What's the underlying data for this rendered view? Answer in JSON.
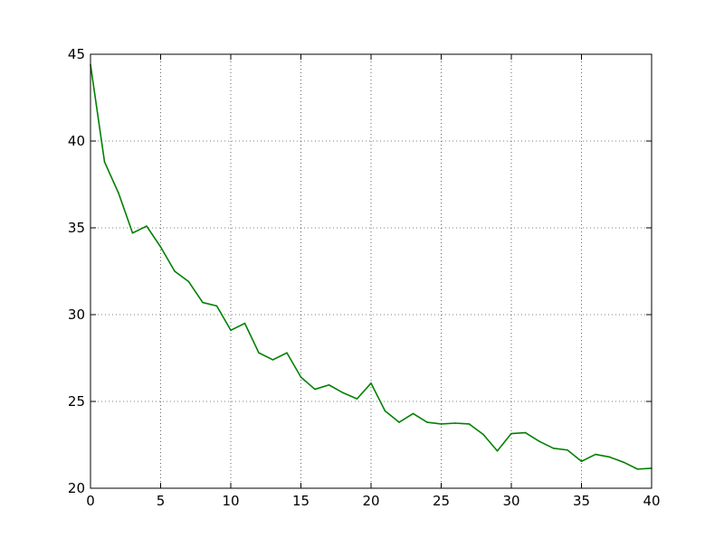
{
  "chart_data": {
    "type": "line",
    "title": "",
    "xlabel": "",
    "ylabel": "",
    "xlim": [
      0,
      40
    ],
    "ylim": [
      20,
      45
    ],
    "x_ticks": [
      0,
      5,
      10,
      15,
      20,
      25,
      30,
      35,
      40
    ],
    "y_ticks": [
      20,
      25,
      30,
      35,
      40,
      45
    ],
    "x_tick_labels": [
      "0",
      "5",
      "10",
      "15",
      "20",
      "25",
      "30",
      "35",
      "40"
    ],
    "y_tick_labels": [
      "20",
      "25",
      "30",
      "35",
      "40",
      "45"
    ],
    "grid": true,
    "grid_style": "dotted",
    "legend": "none",
    "series": [
      {
        "color": "#008000",
        "x": [
          0,
          1,
          2,
          3,
          4,
          5,
          6,
          7,
          8,
          9,
          10,
          11,
          12,
          13,
          14,
          15,
          16,
          17,
          18,
          19,
          20,
          21,
          22,
          23,
          24,
          25,
          26,
          27,
          28,
          29,
          30,
          31,
          32,
          33,
          34,
          35,
          36,
          37,
          38,
          39,
          40
        ],
        "values": [
          44.4,
          38.8,
          37.0,
          34.7,
          35.1,
          33.9,
          32.5,
          31.9,
          30.7,
          30.5,
          29.1,
          29.5,
          27.8,
          27.4,
          27.8,
          26.4,
          25.7,
          25.95,
          25.5,
          25.15,
          26.05,
          24.45,
          23.8,
          24.3,
          23.8,
          23.7,
          23.75,
          23.7,
          23.1,
          22.15,
          23.15,
          23.2,
          22.7,
          22.3,
          22.2,
          21.55,
          21.95,
          21.8,
          21.5,
          21.1,
          21.15
        ]
      }
    ]
  }
}
